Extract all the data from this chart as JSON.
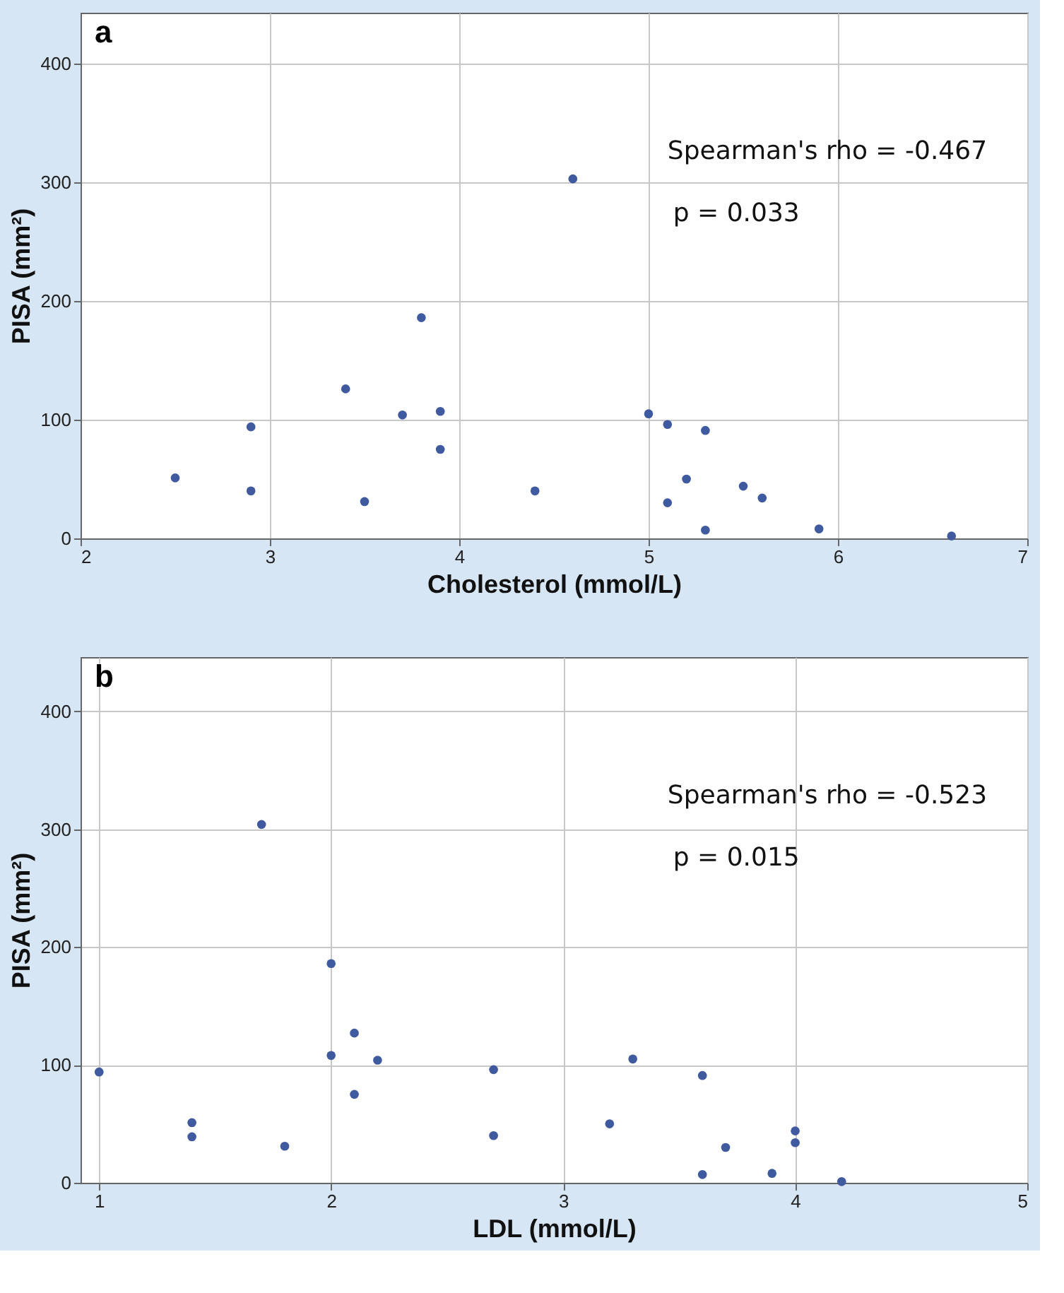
{
  "chart_data": [
    {
      "type": "scatter",
      "title": "a",
      "xlabel": "Cholesterol (mmol/L)",
      "ylabel": "PISA (mm²)",
      "xlim": [
        2,
        7
      ],
      "xticks": [
        2,
        3,
        4,
        5,
        6,
        7
      ],
      "ylim": [
        0,
        443
      ],
      "yticks": [
        0,
        100,
        200,
        300,
        400
      ],
      "grid": true,
      "marker": "circle",
      "annotations": [
        "Spearman's rho = -0.467",
        "p = 0.033"
      ],
      "series": [
        {
          "color": "#3f5a9e",
          "x": [
            2.5,
            2.9,
            2.9,
            3.4,
            3.5,
            3.7,
            3.8,
            3.9,
            3.9,
            4.4,
            4.6,
            5.0,
            5.1,
            5.1,
            5.2,
            5.3,
            5.3,
            5.5,
            5.6,
            5.9,
            6.6
          ],
          "values": [
            51,
            94,
            40,
            126,
            31,
            104,
            186,
            107,
            75,
            40,
            303,
            105,
            96,
            30,
            50,
            91,
            7,
            44,
            34,
            8,
            2
          ]
        }
      ]
    },
    {
      "type": "scatter",
      "title": "b",
      "xlabel": "LDL (mmol/L)",
      "ylabel": "PISA (mm²)",
      "xlim": [
        0.92,
        5
      ],
      "xticks": [
        1,
        2,
        3,
        4,
        5
      ],
      "ylim": [
        0,
        446
      ],
      "yticks": [
        0,
        100,
        200,
        300,
        400
      ],
      "grid": true,
      "marker": "circle",
      "annotations": [
        "Spearman's rho = -0.523",
        "p = 0.015"
      ],
      "series": [
        {
          "color": "#3f5a9e",
          "x": [
            1.0,
            1.4,
            1.4,
            1.7,
            1.8,
            2.0,
            2.0,
            2.1,
            2.1,
            2.2,
            2.7,
            2.7,
            3.2,
            3.3,
            3.6,
            3.6,
            3.7,
            3.9,
            4.0,
            4.0,
            4.2
          ],
          "values": [
            94,
            51,
            39,
            304,
            31,
            186,
            108,
            127,
            75,
            104,
            96,
            40,
            50,
            105,
            91,
            7,
            30,
            8,
            44,
            34,
            1
          ]
        }
      ]
    }
  ]
}
